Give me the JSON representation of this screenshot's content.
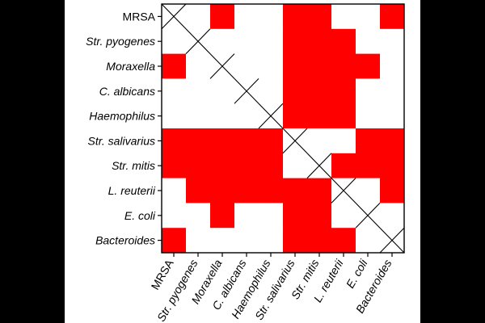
{
  "colors": {
    "background": "#000000",
    "panel": "#ffffff",
    "cell_on": "#ff0000",
    "cell_off": "#ffffff",
    "grid_line": "#000000",
    "diagonal_mark": "#000000"
  },
  "chart_data": {
    "type": "heatmap",
    "title": "",
    "xlabel": "",
    "ylabel": "",
    "legend": "none",
    "grid": false,
    "diagonal": "crossed-out",
    "rows": [
      {
        "label": "MRSA",
        "italic": false
      },
      {
        "label": "Str. pyogenes",
        "italic": true
      },
      {
        "label": "Moraxella",
        "italic": true
      },
      {
        "label": "C. albicans",
        "italic": true
      },
      {
        "label": "Haemophilus",
        "italic": true
      },
      {
        "label": "Str. salivarius",
        "italic": true
      },
      {
        "label": "Str. mitis",
        "italic": true
      },
      {
        "label": "L. reuterii",
        "italic": true
      },
      {
        "label": "E. coli",
        "italic": true
      },
      {
        "label": "Bacteroides",
        "italic": true
      }
    ],
    "columns": [
      {
        "label": "MRSA",
        "italic": false
      },
      {
        "label": "Str. pyogenes",
        "italic": true
      },
      {
        "label": "Moraxella",
        "italic": true
      },
      {
        "label": "C. albicans",
        "italic": true
      },
      {
        "label": "Haemophilus",
        "italic": true
      },
      {
        "label": "Str. salivarius",
        "italic": true
      },
      {
        "label": "Str. mitis",
        "italic": true
      },
      {
        "label": "L. reuterii",
        "italic": true
      },
      {
        "label": "E. coli",
        "italic": true
      },
      {
        "label": "Bacteroides",
        "italic": true
      }
    ],
    "values": [
      [
        0,
        0,
        1,
        0,
        0,
        1,
        1,
        0,
        0,
        1
      ],
      [
        0,
        0,
        0,
        0,
        0,
        1,
        1,
        1,
        0,
        0
      ],
      [
        1,
        0,
        0,
        0,
        0,
        1,
        1,
        1,
        1,
        0
      ],
      [
        0,
        0,
        0,
        0,
        0,
        1,
        1,
        1,
        0,
        0
      ],
      [
        0,
        0,
        0,
        0,
        0,
        1,
        1,
        1,
        0,
        0
      ],
      [
        1,
        1,
        1,
        1,
        1,
        0,
        0,
        0,
        1,
        1
      ],
      [
        1,
        1,
        1,
        1,
        1,
        0,
        0,
        1,
        1,
        1
      ],
      [
        0,
        1,
        1,
        1,
        1,
        1,
        1,
        0,
        0,
        1
      ],
      [
        0,
        0,
        1,
        0,
        0,
        1,
        1,
        0,
        0,
        0
      ],
      [
        1,
        0,
        0,
        0,
        0,
        1,
        1,
        1,
        0,
        0
      ]
    ]
  }
}
